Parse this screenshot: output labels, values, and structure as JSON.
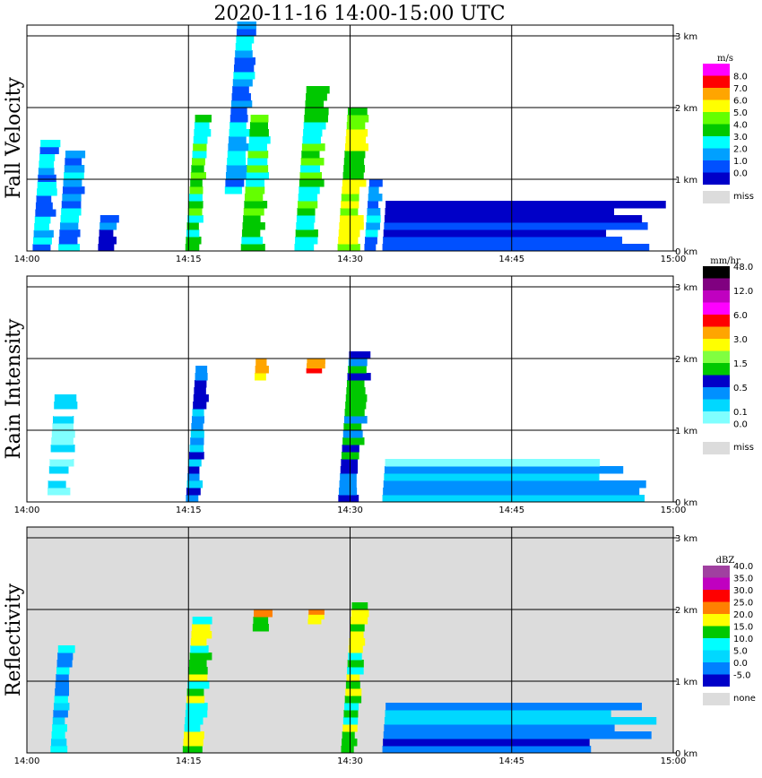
{
  "figure": {
    "title": "2020-11-16  14:00-15:00 UTC"
  },
  "chart_data": [
    {
      "type": "heatmap",
      "ylabel": "Fall Velocity",
      "x_ticks": [
        "14:00",
        "14:15",
        "14:30",
        "14:45",
        "15:00"
      ],
      "y_ticks": [
        "0 km",
        "1 km",
        "2 km",
        "3 km"
      ],
      "ylim": [
        0,
        3.2
      ],
      "grid": true,
      "colorbar": {
        "unit": "m/s",
        "colors": [
          "#0000c8",
          "#0050ff",
          "#00a0ff",
          "#00ffff",
          "#00c800",
          "#64ff00",
          "#ffff00",
          "#ffa500",
          "#ff0000",
          "#ff00ff"
        ],
        "labels": [
          "0.0",
          "1.0",
          "2.0",
          "3.0",
          "4.0",
          "5.0",
          "6.0",
          "7.0",
          "8.0"
        ],
        "missing": "miss",
        "missing_color": "#dcdcdc"
      },
      "echo_cells": [
        {
          "t": 1.5,
          "ht": 0.0,
          "hb": 1.55,
          "v": 2
        },
        {
          "t": 4.0,
          "ht": 0.0,
          "hb": 1.4,
          "v": 2
        },
        {
          "t": 7.5,
          "ht": 0.0,
          "hb": 0.5,
          "v": 1
        },
        {
          "t": 15.5,
          "ht": 0.0,
          "hb": 1.9,
          "v": 4
        },
        {
          "t": 19.0,
          "ht": 0.8,
          "hb": 3.2,
          "v": 2
        },
        {
          "t": 21.0,
          "ht": 0.0,
          "hb": 1.9,
          "v": 4
        },
        {
          "t": 26.0,
          "ht": 0.0,
          "hb": 2.3,
          "v": 4
        },
        {
          "t": 30.0,
          "ht": 0.0,
          "hb": 2.0,
          "v": 5
        },
        {
          "t": 32.0,
          "ht": 0.0,
          "hb": 1.0,
          "v": 2
        },
        {
          "t": 45.0,
          "ht": 0.0,
          "hb": 0.7,
          "v": 0
        }
      ]
    },
    {
      "type": "heatmap",
      "ylabel": "Rain Intensity",
      "x_ticks": [
        "14:00",
        "14:15",
        "14:30",
        "14:45",
        "15:00"
      ],
      "y_ticks": [
        "0 km",
        "1 km",
        "2 km",
        "3 km"
      ],
      "ylim": [
        0,
        3.2
      ],
      "grid": true,
      "colorbar": {
        "unit": "mm/hr",
        "colors": [
          "#ffffff",
          "#80ffff",
          "#00d8ff",
          "#0090ff",
          "#0000c8",
          "#00c800",
          "#80ff40",
          "#ffff00",
          "#ffa500",
          "#ff0000",
          "#ff00ff",
          "#c000c0",
          "#800080",
          "#000000"
        ],
        "labels": [
          "0.0",
          "0.1",
          "",
          "0.5",
          "",
          "1.5",
          "",
          "3.0",
          "",
          "6.0",
          "",
          "12.0",
          "",
          "48.0"
        ],
        "missing": "miss",
        "missing_color": "#dcdcdc"
      },
      "echo_cells": [
        {
          "t": 3.0,
          "ht": 0.0,
          "hb": 1.5,
          "v": 1
        },
        {
          "t": 15.5,
          "ht": 0.0,
          "hb": 1.9,
          "v": 3
        },
        {
          "t": 21.0,
          "ht": 1.7,
          "hb": 2.0,
          "v": 7
        },
        {
          "t": 26.0,
          "ht": 1.8,
          "hb": 2.0,
          "v": 9
        },
        {
          "t": 30.0,
          "ht": 0.0,
          "hb": 2.1,
          "v": 4
        },
        {
          "t": 45.0,
          "ht": 0.0,
          "hb": 0.6,
          "v": 2
        }
      ]
    },
    {
      "type": "heatmap",
      "ylabel": "Reflectivity",
      "x_ticks": [
        "14:00",
        "14:15",
        "14:30",
        "14:45",
        "15:00"
      ],
      "y_ticks": [
        "0 km",
        "1 km",
        "2 km",
        "3 km"
      ],
      "ylim": [
        0,
        3.2
      ],
      "grid": true,
      "colorbar": {
        "unit": "dBZ",
        "colors": [
          "#0000c8",
          "#0080ff",
          "#00d8ff",
          "#00ffff",
          "#00c800",
          "#ffff00",
          "#ff8000",
          "#ff0000",
          "#c000c0",
          "#a040a0"
        ],
        "labels": [
          "-5.0",
          "0.0",
          "5.0",
          "10.0",
          "15.0",
          "20.0",
          "25.0",
          "30.0",
          "35.0",
          "40.0"
        ],
        "missing": "none",
        "missing_color": "#dcdcdc"
      },
      "echo_cells": [
        {
          "t": 3.0,
          "ht": 0.0,
          "hb": 1.5,
          "v": 2
        },
        {
          "t": 15.5,
          "ht": 0.0,
          "hb": 1.9,
          "v": 4
        },
        {
          "t": 21.0,
          "ht": 1.7,
          "hb": 2.0,
          "v": 5
        },
        {
          "t": 26.0,
          "ht": 1.8,
          "hb": 2.0,
          "v": 6
        },
        {
          "t": 30.0,
          "ht": 0.0,
          "hb": 2.1,
          "v": 4
        },
        {
          "t": 45.0,
          "ht": 0.0,
          "hb": 0.7,
          "v": 1
        }
      ]
    }
  ]
}
